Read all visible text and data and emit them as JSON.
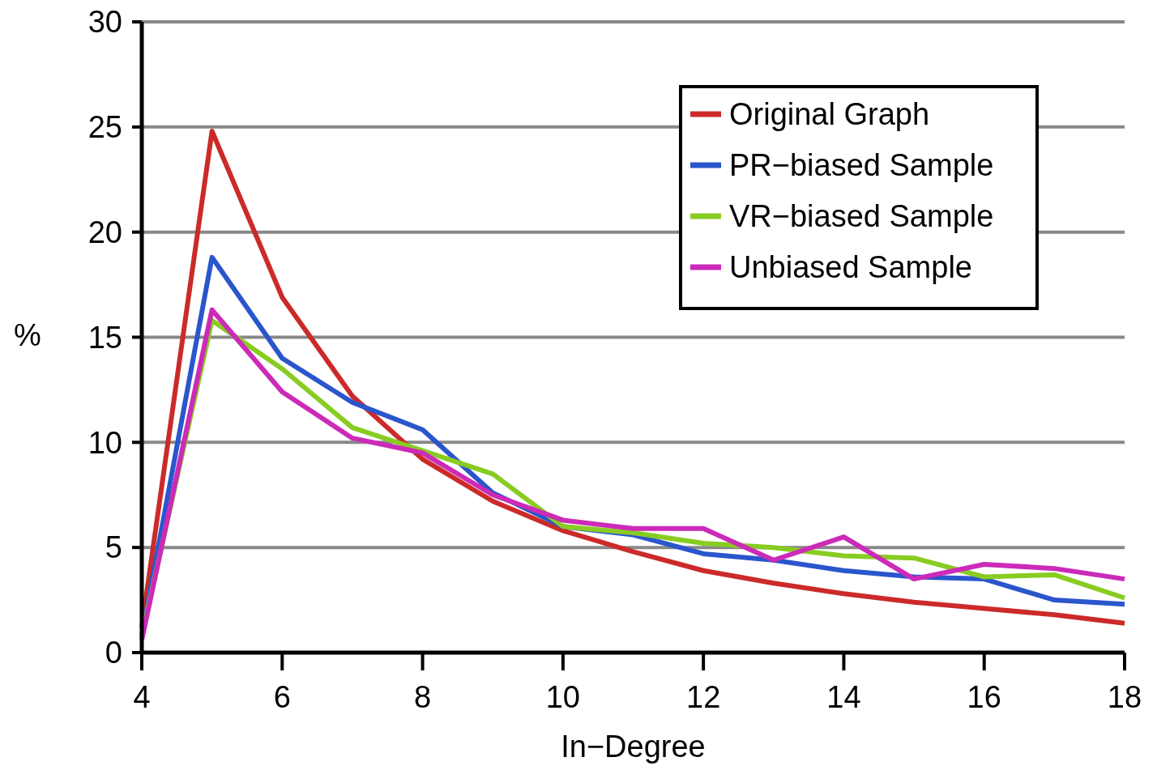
{
  "chart_data": {
    "type": "line",
    "xlabel": "In−Degree",
    "ylabel": "%",
    "x": [
      4,
      5,
      6,
      7,
      8,
      9,
      10,
      11,
      12,
      13,
      14,
      15,
      16,
      17,
      18
    ],
    "xlim": [
      4,
      18
    ],
    "xticks": [
      4,
      6,
      8,
      10,
      12,
      14,
      16,
      18
    ],
    "ylim": [
      0,
      30
    ],
    "yticks": [
      0,
      5,
      10,
      15,
      20,
      25,
      30
    ],
    "grid": "y",
    "legend": "top right",
    "line_style": "solid",
    "marker": "none",
    "series": [
      {
        "name": "Original Graph",
        "color": "#cc2a2a",
        "values": [
          1.2,
          24.8,
          16.9,
          12.2,
          9.2,
          7.2,
          5.8,
          4.8,
          3.9,
          3.3,
          2.8,
          2.4,
          2.1,
          1.8,
          1.4
        ]
      },
      {
        "name": "PR−biased Sample",
        "color": "#2a56cc",
        "values": [
          0.8,
          18.8,
          14.0,
          11.9,
          10.6,
          7.6,
          6.0,
          5.6,
          4.7,
          4.4,
          3.9,
          3.6,
          3.5,
          2.5,
          2.3
        ]
      },
      {
        "name": "VR−biased Sample",
        "color": "#88cc22",
        "values": [
          0.8,
          15.8,
          13.5,
          10.7,
          9.6,
          8.5,
          6.0,
          5.7,
          5.2,
          5.0,
          4.6,
          4.5,
          3.6,
          3.7,
          2.6
        ]
      },
      {
        "name": "Unbiased Sample",
        "color": "#cc2ab8",
        "values": [
          0.6,
          16.3,
          12.4,
          10.2,
          9.5,
          7.5,
          6.3,
          5.9,
          5.9,
          4.4,
          5.5,
          3.5,
          4.2,
          4.0,
          3.5
        ]
      }
    ]
  }
}
